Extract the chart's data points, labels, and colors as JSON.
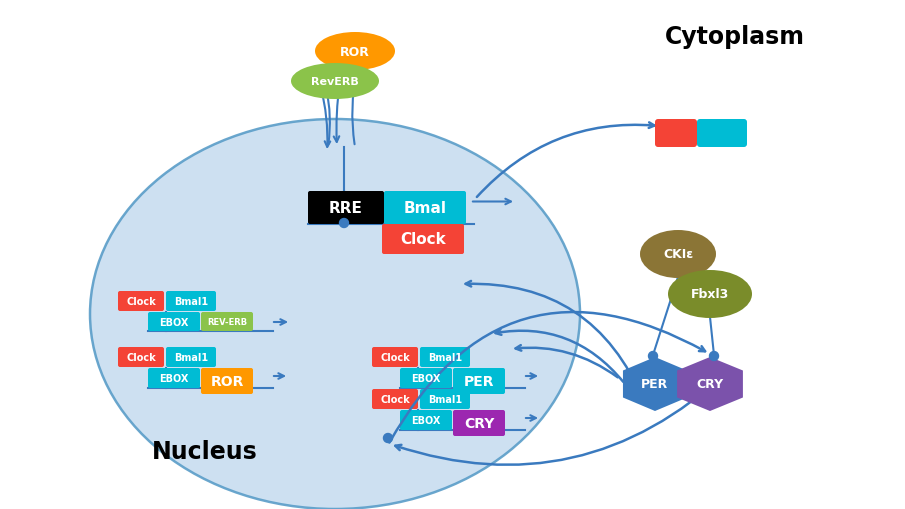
{
  "title_cytoplasm": "Cytoplasm",
  "title_nucleus": "Nucleus",
  "nucleus_color": "#c8ddf0",
  "nucleus_edge_color": "#5a9dc8",
  "arrow_color": "#3a7abf",
  "dot_color": "#3a7abf",
  "RRE_color": "#000000",
  "RRE_text": "RRE",
  "Bmal_color": "#00bcd4",
  "Bmal_text": "Bmal",
  "Clock_color": "#f44336",
  "Clock_text": "Clock",
  "EBOX_color": "#00bcd4",
  "EBOX_text": "EBOX",
  "Clock_small_color": "#f44336",
  "Bmal1_small_color": "#00bcd4",
  "Clock_small_text": "Clock",
  "Bmal1_small_text": "Bmal1",
  "REV_ERB_color": "#8bc34a",
  "REV_ERB_text": "REV-ERB",
  "ROR_box_color": "#ff9800",
  "ROR_box_text": "ROR",
  "PER_box_color": "#00bcd4",
  "PER_box_text": "PER",
  "CRY_box_color": "#9c27b0",
  "CRY_box_text": "CRY",
  "ROR_ellipse_color": "#ff9800",
  "ROR_ellipse_text": "ROR",
  "RevERB_ellipse_color": "#8bc34a",
  "RevERB_ellipse_text": "RevERB",
  "CKIe_color": "#8b7536",
  "CKIe_text": "CKIε",
  "Fbxl3_color": "#7a8c2a",
  "Fbxl3_text": "Fbxl3",
  "PER_hex_color": "#3a7abf",
  "PER_hex_text": "PER",
  "CRY_hex_color": "#7b52ab",
  "CRY_hex_text": "CRY",
  "cytoplasm_rect_red": "#f44336",
  "cytoplasm_rect_cyan": "#00bcd4",
  "bg_color": "#ffffff"
}
